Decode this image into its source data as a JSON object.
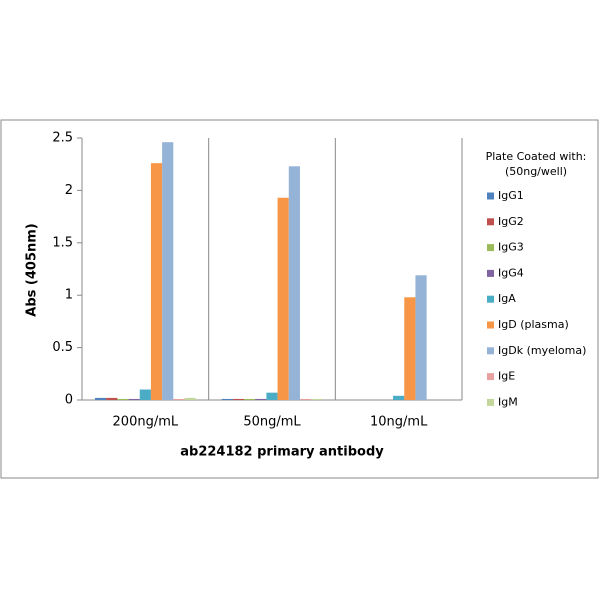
{
  "chart_data": {
    "type": "bar",
    "x_label": "ab224182 primary antibody",
    "y_label": "Abs (405nm)",
    "legend_title": [
      "Plate Coated with:",
      "(50ng/well)"
    ],
    "legend_position": "right",
    "categories": [
      "200ng/mL",
      "50ng/mL",
      "10ng/mL"
    ],
    "ylim": [
      0,
      2.5
    ],
    "yticks": [
      0,
      0.5,
      1,
      1.5,
      2,
      2.5
    ],
    "series": [
      {
        "name": "IgG1",
        "color": "#4f81bd",
        "values": [
          0.02,
          0.01,
          0
        ]
      },
      {
        "name": "IgG2",
        "color": "#c0504d",
        "values": [
          0.02,
          0.01,
          0
        ]
      },
      {
        "name": "IgG3",
        "color": "#9bbb59",
        "values": [
          0.01,
          0.01,
          0
        ]
      },
      {
        "name": "IgG4",
        "color": "#8064a2",
        "values": [
          0.01,
          0.01,
          0
        ]
      },
      {
        "name": "IgA",
        "color": "#4bacc6",
        "values": [
          0.1,
          0.07,
          0.04
        ]
      },
      {
        "name": "IgD (plasma)",
        "color": "#f79646",
        "values": [
          2.26,
          1.93,
          0.98
        ]
      },
      {
        "name": "IgDk (myeloma)",
        "color": "#95b3d7",
        "values": [
          2.46,
          2.23,
          1.19
        ]
      },
      {
        "name": "IgE",
        "color": "#e6a1a0",
        "values": [
          0.01,
          0.01,
          0
        ]
      },
      {
        "name": "IgM",
        "color": "#c3d69b",
        "values": [
          0.02,
          0.01,
          0
        ]
      }
    ]
  }
}
